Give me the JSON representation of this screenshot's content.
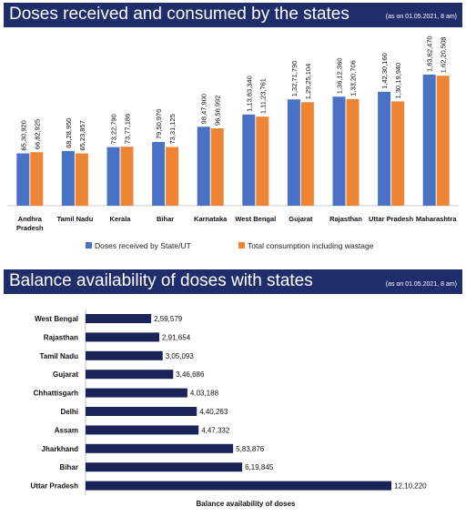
{
  "colors": {
    "banner": "#1f2d6b",
    "received": "#4a72c4",
    "consumed": "#ee8535",
    "balance": "#1b2458"
  },
  "chart_data": [
    {
      "type": "bar",
      "title": "Doses received and consumed by the states",
      "subtitle": "(as on 01.05.2021, 8 am)",
      "categories": [
        "Andhra Pradesh",
        "Tamil Nadu",
        "Kerala",
        "Bihar",
        "Karnataka",
        "West Bengal",
        "Gujarat",
        "Rajasthan",
        "Uttar Pradesh",
        "Maharashtra"
      ],
      "series": [
        {
          "name": "Doses received by State/UT",
          "values": [
            6530920,
            6828950,
            7322790,
            7950970,
            9847900,
            11383340,
            13271790,
            13612360,
            14230160,
            16362470
          ],
          "labels": [
            "65,30,920",
            "68,28,950",
            "73,22,790",
            "79,50,970",
            "98,47,900",
            "1,13,83,340",
            "1,32,71,790",
            "1,36,12,360",
            "1,42,30,160",
            "1,63,62,470"
          ]
        },
        {
          "name": "Total consumption including wastage",
          "values": [
            6682925,
            6523857,
            7377186,
            7331125,
            9656992,
            11123761,
            12925104,
            13320706,
            13019940,
            16220508
          ],
          "labels": [
            "66,82,925",
            "65,23,857",
            "73,77,186",
            "73,31,125",
            "96,56,992",
            "1,11,23,761",
            "1,29,25,104",
            "1,33,20,706",
            "1,30,19,940",
            "1,62,20,508"
          ]
        }
      ],
      "legend_position": "bottom",
      "grid": false
    },
    {
      "type": "bar",
      "orientation": "horizontal",
      "title": "Balance availability of doses with states",
      "subtitle": "(as on 01.05.2021, 8 am)",
      "xlabel": "Balance availability of doses",
      "categories": [
        "West Bengal",
        "Rajasthan",
        "Tamil Nadu",
        "Gujarat",
        "Chhattisgarh",
        "Delhi",
        "Assam",
        "Jharkhand",
        "Bihar",
        "Uttar Pradesh"
      ],
      "values": [
        259579,
        291654,
        305093,
        346686,
        403188,
        440263,
        447332,
        583876,
        619845,
        1210220
      ],
      "labels": [
        "2,59,579",
        "2,91,654",
        "3,05,093",
        "3,46,686",
        "4,03,188",
        "4,40,263",
        "4,47,332",
        "5,83,876",
        "6,19,845",
        "12,10,220"
      ],
      "grid": false
    }
  ]
}
